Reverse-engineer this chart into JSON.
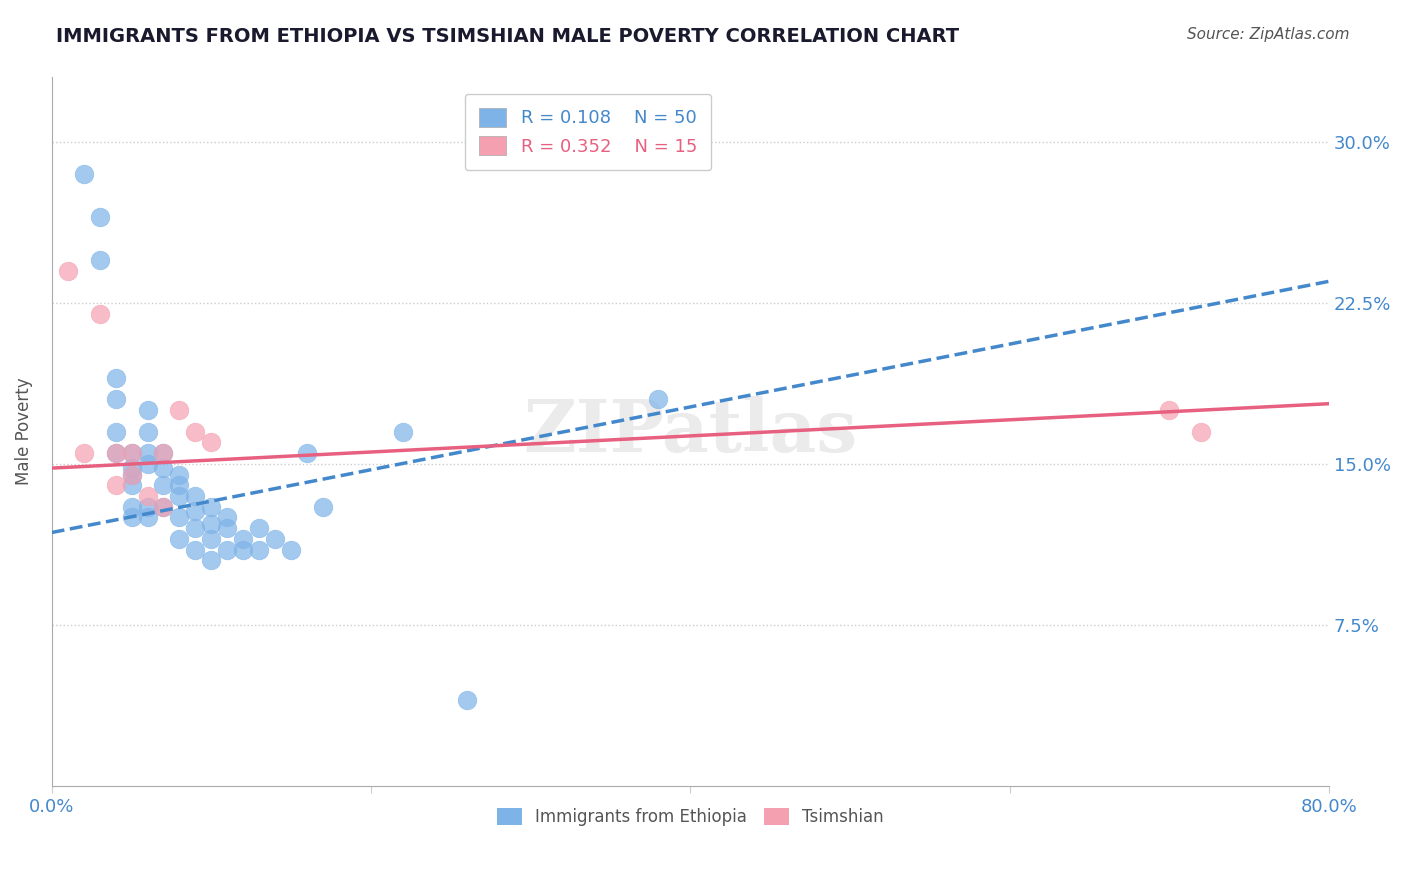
{
  "title": "IMMIGRANTS FROM ETHIOPIA VS TSIMSHIAN MALE POVERTY CORRELATION CHART",
  "source_text": "Source: ZipAtlas.com",
  "xlabel": "",
  "ylabel": "Male Poverty",
  "xlim": [
    0.0,
    0.8
  ],
  "ylim": [
    0.0,
    0.33
  ],
  "xticks": [
    0.0,
    0.2,
    0.4,
    0.6,
    0.8
  ],
  "xticklabels": [
    "0.0%",
    "",
    "",
    "",
    "80.0%"
  ],
  "yticks": [
    0.075,
    0.15,
    0.225,
    0.3
  ],
  "yticklabels": [
    "7.5%",
    "15.0%",
    "22.5%",
    "30.0%"
  ],
  "legend_r1": "R = 0.108",
  "legend_n1": "N = 50",
  "legend_r2": "R = 0.352",
  "legend_n2": "N = 15",
  "blue_color": "#7EB3E8",
  "pink_color": "#F4A0B0",
  "blue_line_color": "#4488CC",
  "pink_line_color": "#E86080",
  "title_color": "#1a1a2e",
  "watermark_text": "ZIPatlas",
  "blue_scatter_x": [
    0.02,
    0.03,
    0.03,
    0.04,
    0.04,
    0.04,
    0.04,
    0.05,
    0.05,
    0.05,
    0.05,
    0.05,
    0.05,
    0.06,
    0.06,
    0.06,
    0.06,
    0.06,
    0.06,
    0.07,
    0.07,
    0.07,
    0.07,
    0.08,
    0.08,
    0.08,
    0.08,
    0.08,
    0.09,
    0.09,
    0.09,
    0.09,
    0.1,
    0.1,
    0.1,
    0.1,
    0.11,
    0.11,
    0.11,
    0.12,
    0.12,
    0.13,
    0.13,
    0.14,
    0.15,
    0.16,
    0.17,
    0.22,
    0.26,
    0.38
  ],
  "blue_scatter_y": [
    0.285,
    0.265,
    0.245,
    0.19,
    0.18,
    0.165,
    0.155,
    0.155,
    0.148,
    0.145,
    0.14,
    0.13,
    0.125,
    0.175,
    0.165,
    0.155,
    0.15,
    0.13,
    0.125,
    0.155,
    0.148,
    0.14,
    0.13,
    0.145,
    0.14,
    0.135,
    0.125,
    0.115,
    0.135,
    0.128,
    0.12,
    0.11,
    0.13,
    0.122,
    0.115,
    0.105,
    0.125,
    0.12,
    0.11,
    0.115,
    0.11,
    0.12,
    0.11,
    0.115,
    0.11,
    0.155,
    0.13,
    0.165,
    0.04,
    0.18
  ],
  "pink_scatter_x": [
    0.01,
    0.02,
    0.03,
    0.04,
    0.04,
    0.05,
    0.05,
    0.06,
    0.07,
    0.07,
    0.08,
    0.09,
    0.1,
    0.7,
    0.72
  ],
  "pink_scatter_y": [
    0.24,
    0.155,
    0.22,
    0.155,
    0.14,
    0.155,
    0.145,
    0.135,
    0.155,
    0.13,
    0.175,
    0.165,
    0.16,
    0.175,
    0.165
  ],
  "blue_trend_x": [
    0.0,
    0.8
  ],
  "blue_trend_y": [
    0.118,
    0.235
  ],
  "pink_trend_x": [
    0.0,
    0.8
  ],
  "pink_trend_y": [
    0.148,
    0.178
  ],
  "bottom_legend_labels": [
    "Immigrants from Ethiopia",
    "Tsimshian"
  ]
}
